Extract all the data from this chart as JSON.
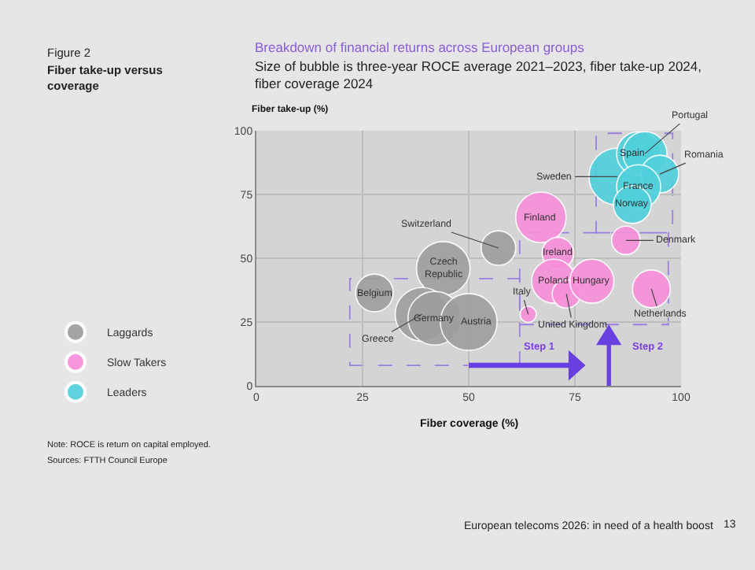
{
  "chart_data": {
    "type": "bubble",
    "title": "Breakdown of financial returns across European groups",
    "subtitle": "Size of bubble is three-year ROCE average 2021–2023, fiber take-up 2024, fiber coverage 2024",
    "xlabel": "Fiber coverage (%)",
    "ylabel": "Fiber take-up (%)",
    "xlim": [
      0,
      100
    ],
    "xticks": [
      0,
      25,
      50,
      75,
      100
    ],
    "ylim": [
      0,
      100
    ],
    "yticks": [
      0,
      25,
      50,
      75,
      100
    ],
    "grid": true,
    "legend": "left",
    "series": [
      {
        "name": "Laggards",
        "color": "#9e9e9e",
        "x": [
          27.8,
          44,
          39,
          42,
          50,
          57
        ],
        "values": [
          36.4,
          46,
          28,
          26.5,
          25,
          54
        ],
        "sizes": [
          0.44,
          0.89,
          0.89,
          0.89,
          1,
          0.37
        ]
      },
      {
        "name": "Slow Takers",
        "color": "#f78fd9",
        "x": [
          67,
          71,
          70,
          73,
          79,
          64,
          87,
          93
        ],
        "values": [
          66,
          52,
          41,
          36,
          41,
          28,
          57,
          38
        ],
        "sizes": [
          0.79,
          0.31,
          0.6,
          0.25,
          0.6,
          0.08,
          0.25,
          0.44
        ]
      },
      {
        "name": "Leaders",
        "color": "#4fd0dc",
        "x": [
          85,
          90,
          91.5,
          95,
          90,
          88.5
        ],
        "values": [
          82,
          91,
          91,
          83,
          78,
          71
        ],
        "sizes": [
          1,
          0.6,
          0.6,
          0.44,
          0.6,
          0.44
        ]
      }
    ],
    "annotations": [
      "Figure 2",
      "Fiber take-up versus coverage",
      "Note: ROCE is return on capital employed.",
      "Sources: FTTH Council Europe",
      "European telecoms 2026: in need of a health boost",
      "13",
      "Step 1",
      "Step 2",
      {
        "text": "Belgium",
        "x": 27.8,
        "y": 36.4
      },
      {
        "text": "Czech Republic",
        "x": 44,
        "y": 46
      },
      {
        "text": "Greece",
        "x": 39,
        "y": 28
      },
      {
        "text": "Germany",
        "x": 42,
        "y": 26.5
      },
      {
        "text": "Austria",
        "x": 50,
        "y": 25
      },
      {
        "text": "Switzerland",
        "x": 57,
        "y": 54
      },
      {
        "text": "Finland",
        "x": 67,
        "y": 66
      },
      {
        "text": "Ireland",
        "x": 71,
        "y": 52
      },
      {
        "text": "Poland",
        "x": 70,
        "y": 41
      },
      {
        "text": "United Kingdom",
        "x": 73,
        "y": 36
      },
      {
        "text": "Hungary",
        "x": 79,
        "y": 41
      },
      {
        "text": "Italy",
        "x": 64,
        "y": 28
      },
      {
        "text": "Denmark",
        "x": 87,
        "y": 57
      },
      {
        "text": "Netherlands",
        "x": 93,
        "y": 38
      },
      {
        "text": "Sweden",
        "x": 85,
        "y": 82
      },
      {
        "text": "Spain",
        "x": 90,
        "y": 91
      },
      {
        "text": "Portugal",
        "x": 91.5,
        "y": 91
      },
      {
        "text": "Romania",
        "x": 95,
        "y": 83
      },
      {
        "text": "France",
        "x": 90,
        "y": 78
      },
      {
        "text": "Norway",
        "x": 88.5,
        "y": 71
      }
    ]
  }
}
